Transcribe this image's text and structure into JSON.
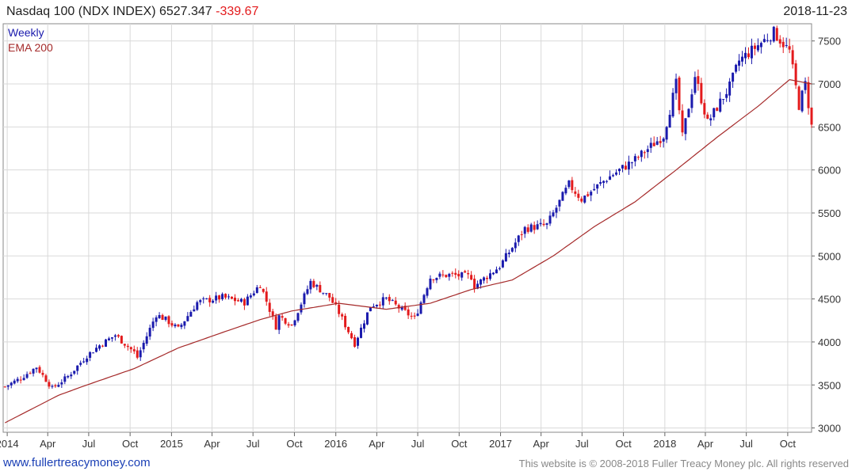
{
  "header": {
    "title": "Nasdaq 100 (NDX INDEX) 6527.347",
    "change": "-339.67",
    "date": "2018-11-23"
  },
  "footer": {
    "site": "www.fullertreacymoney.com",
    "copyright": "This website is © 2008-2018 Fuller Treacy Money plc. All rights reserved"
  },
  "colors": {
    "up": "#1a1aad",
    "down": "#e31a1c",
    "ema": "#a52a2a",
    "grid": "#d9d9d9",
    "change": "#e31a1c"
  },
  "chart_data": {
    "type": "candlestick",
    "interval_label": "Weekly",
    "series": [
      {
        "name": "Weekly"
      },
      {
        "name": "EMA 200"
      }
    ],
    "y_ticks": [
      3000,
      3500,
      4000,
      4500,
      5000,
      5500,
      6000,
      6500,
      7000,
      7500
    ],
    "ylim": [
      2950,
      7700
    ],
    "x_start": "2013-12-23",
    "x_end": "2018-11-23",
    "x_ticks": [
      {
        "label": "2014",
        "date": "2014-01-01"
      },
      {
        "label": "Apr",
        "date": "2014-04-01"
      },
      {
        "label": "Jul",
        "date": "2014-07-01"
      },
      {
        "label": "Oct",
        "date": "2014-10-01"
      },
      {
        "label": "2015",
        "date": "2015-01-01"
      },
      {
        "label": "Apr",
        "date": "2015-04-01"
      },
      {
        "label": "Jul",
        "date": "2015-07-01"
      },
      {
        "label": "Oct",
        "date": "2015-10-01"
      },
      {
        "label": "2016",
        "date": "2016-01-01"
      },
      {
        "label": "Apr",
        "date": "2016-04-01"
      },
      {
        "label": "Jul",
        "date": "2016-07-01"
      },
      {
        "label": "Oct",
        "date": "2016-10-01"
      },
      {
        "label": "2017",
        "date": "2017-01-01"
      },
      {
        "label": "Apr",
        "date": "2017-04-01"
      },
      {
        "label": "Jul",
        "date": "2017-07-01"
      },
      {
        "label": "Oct",
        "date": "2017-10-01"
      },
      {
        "label": "2018",
        "date": "2018-01-01"
      },
      {
        "label": "Apr",
        "date": "2018-04-01"
      },
      {
        "label": "Jul",
        "date": "2018-07-01"
      },
      {
        "label": "Oct",
        "date": "2018-10-01"
      }
    ],
    "close_points": [
      [
        "2013-12-27",
        3480
      ],
      [
        "2014-01-31",
        3580
      ],
      [
        "2014-03-07",
        3710
      ],
      [
        "2014-04-11",
        3460
      ],
      [
        "2014-05-16",
        3600
      ],
      [
        "2014-06-27",
        3840
      ],
      [
        "2014-07-25",
        3960
      ],
      [
        "2014-08-29",
        4080
      ],
      [
        "2014-10-10",
        3880
      ],
      [
        "2014-10-17",
        3820
      ],
      [
        "2014-11-28",
        4320
      ],
      [
        "2014-12-19",
        4260
      ],
      [
        "2015-01-16",
        4150
      ],
      [
        "2015-02-27",
        4460
      ],
      [
        "2015-04-24",
        4520
      ],
      [
        "2015-06-12",
        4460
      ],
      [
        "2015-07-17",
        4670
      ],
      [
        "2015-08-21",
        4180
      ],
      [
        "2015-08-28",
        4300
      ],
      [
        "2015-09-25",
        4200
      ],
      [
        "2015-11-06",
        4700
      ],
      [
        "2015-12-18",
        4520
      ],
      [
        "2016-01-08",
        4340
      ],
      [
        "2016-02-12",
        3980
      ],
      [
        "2016-03-18",
        4420
      ],
      [
        "2016-04-22",
        4500
      ],
      [
        "2016-06-24",
        4270
      ],
      [
        "2016-07-29",
        4750
      ],
      [
        "2016-09-09",
        4780
      ],
      [
        "2016-10-28",
        4760
      ],
      [
        "2016-11-04",
        4650
      ],
      [
        "2016-12-30",
        4880
      ],
      [
        "2017-02-24",
        5320
      ],
      [
        "2017-04-14",
        5360
      ],
      [
        "2017-06-02",
        5830
      ],
      [
        "2017-06-30",
        5660
      ],
      [
        "2017-08-25",
        5900
      ],
      [
        "2017-10-27",
        6120
      ],
      [
        "2017-12-29",
        6400
      ],
      [
        "2018-01-26",
        7000
      ],
      [
        "2018-02-09",
        6380
      ],
      [
        "2018-03-09",
        7100
      ],
      [
        "2018-04-06",
        6550
      ],
      [
        "2018-05-25",
        6970
      ],
      [
        "2018-06-15",
        7270
      ],
      [
        "2018-08-31",
        7600
      ],
      [
        "2018-10-05",
        7380
      ],
      [
        "2018-10-26",
        6750
      ],
      [
        "2018-11-09",
        7000
      ],
      [
        "2018-11-23",
        6527
      ]
    ],
    "ema_points": [
      [
        "2013-12-27",
        3060
      ],
      [
        "2014-04-25",
        3380
      ],
      [
        "2014-06-27",
        3500
      ],
      [
        "2014-10-10",
        3690
      ],
      [
        "2015-01-16",
        3930
      ],
      [
        "2015-04-24",
        4110
      ],
      [
        "2015-07-17",
        4260
      ],
      [
        "2015-09-25",
        4360
      ],
      [
        "2016-01-08",
        4450
      ],
      [
        "2016-04-22",
        4380
      ],
      [
        "2016-07-29",
        4450
      ],
      [
        "2016-10-28",
        4610
      ],
      [
        "2017-01-27",
        4720
      ],
      [
        "2017-04-28",
        5000
      ],
      [
        "2017-07-28",
        5340
      ],
      [
        "2017-10-27",
        5630
      ],
      [
        "2018-01-26",
        6000
      ],
      [
        "2018-04-27",
        6380
      ],
      [
        "2018-07-27",
        6740
      ],
      [
        "2018-10-05",
        7050
      ],
      [
        "2018-11-23",
        7000
      ]
    ]
  }
}
